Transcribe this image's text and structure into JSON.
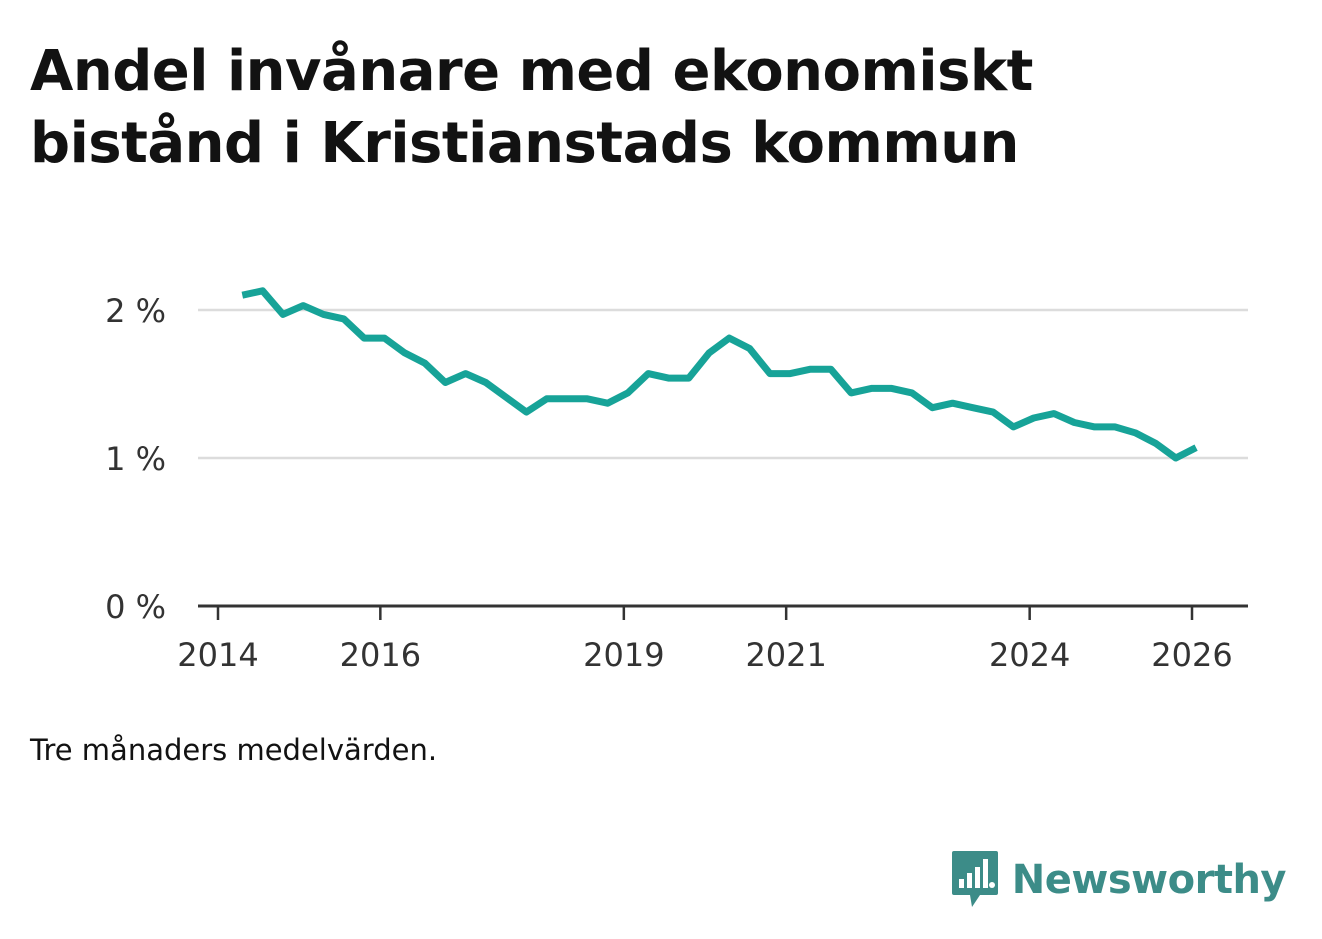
{
  "title": "Andel invånare med ekonomiskt bistånd i Kristianstads kommun",
  "note": "Tre månaders medelvärden.",
  "brand": {
    "name": "Newsworthy"
  },
  "colors": {
    "line": "#17a398",
    "grid": "#dcdcdc",
    "axis": "#333333",
    "text": "#121212",
    "brand": "#3c8c88"
  },
  "chart_data": {
    "type": "line",
    "title": "Andel invånare med ekonomiskt bistånd i Kristianstads kommun",
    "xlabel": "",
    "ylabel": "",
    "x_range": [
      2013.75,
      2026.6
    ],
    "y_range": [
      0,
      2.2
    ],
    "yticks": [
      {
        "value": 0,
        "label": "0 %"
      },
      {
        "value": 1,
        "label": "1 %"
      },
      {
        "value": 2,
        "label": "2 %"
      }
    ],
    "xticks": [
      {
        "value": 2014,
        "label": "2014"
      },
      {
        "value": 2016,
        "label": "2016"
      },
      {
        "value": 2019,
        "label": "2019"
      },
      {
        "value": 2021,
        "label": "2021"
      },
      {
        "value": 2024,
        "label": "2024"
      },
      {
        "value": 2026,
        "label": "2026"
      }
    ],
    "grid": true,
    "series": [
      {
        "name": "Andel invånare med ekonomiskt bistånd",
        "x": [
          2014.3,
          2014.55,
          2014.8,
          2015.05,
          2015.3,
          2015.55,
          2015.8,
          2016.05,
          2016.3,
          2016.55,
          2016.8,
          2017.05,
          2017.3,
          2017.55,
          2017.8,
          2018.05,
          2018.3,
          2018.55,
          2018.8,
          2019.05,
          2019.3,
          2019.55,
          2019.8,
          2020.05,
          2020.3,
          2020.55,
          2020.8,
          2021.05,
          2021.3,
          2021.55,
          2021.8,
          2022.05,
          2022.3,
          2022.55,
          2022.8,
          2023.05,
          2023.3,
          2023.55,
          2023.8,
          2024.05,
          2024.3,
          2024.55,
          2024.8,
          2025.05,
          2025.3,
          2025.55,
          2025.8,
          2026.05
        ],
        "values": [
          2.1,
          2.13,
          1.97,
          2.03,
          1.97,
          1.94,
          1.81,
          1.81,
          1.71,
          1.64,
          1.51,
          1.57,
          1.51,
          1.41,
          1.31,
          1.4,
          1.4,
          1.4,
          1.37,
          1.44,
          1.57,
          1.54,
          1.54,
          1.71,
          1.81,
          1.74,
          1.57,
          1.57,
          1.6,
          1.6,
          1.44,
          1.47,
          1.47,
          1.44,
          1.34,
          1.37,
          1.34,
          1.31,
          1.21,
          1.27,
          1.3,
          1.24,
          1.21,
          1.21,
          1.17,
          1.1,
          1.0,
          1.07
        ]
      }
    ]
  }
}
